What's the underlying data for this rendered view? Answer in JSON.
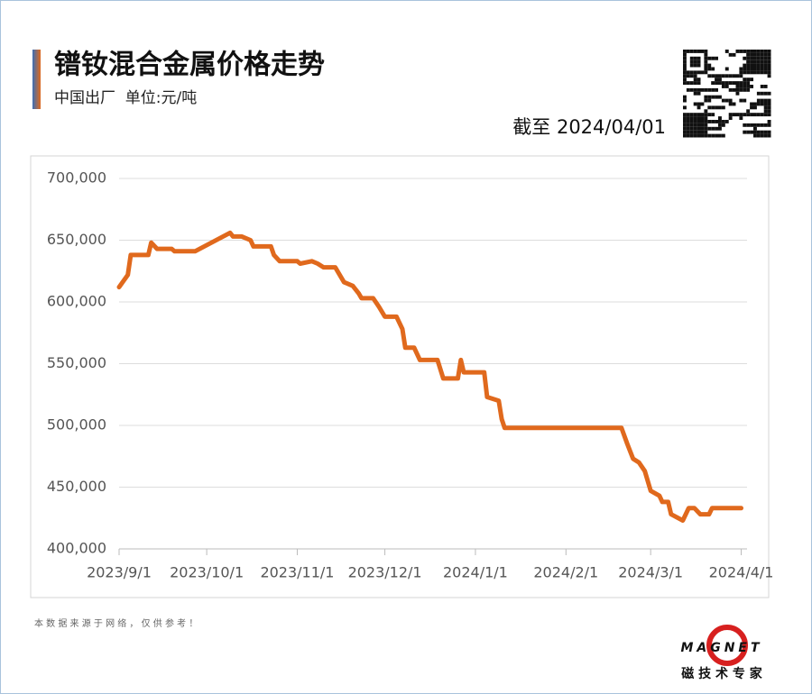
{
  "header": {
    "title": "镨钕混合金属价格走势",
    "subtitle": "中国出厂  单位:元/吨",
    "as_of": "截至 2024/04/01"
  },
  "chart_data": {
    "type": "line",
    "x": [
      "2023/9/1",
      "2023/9/4",
      "2023/9/5",
      "2023/9/11",
      "2023/9/12",
      "2023/9/14",
      "2023/9/19",
      "2023/9/20",
      "2023/9/27",
      "2023/10/9",
      "2023/10/10",
      "2023/10/13",
      "2023/10/16",
      "2023/10/17",
      "2023/10/23",
      "2023/10/24",
      "2023/10/26",
      "2023/11/1",
      "2023/11/2",
      "2023/11/6",
      "2023/11/8",
      "2023/11/10",
      "2023/11/14",
      "2023/11/17",
      "2023/11/20",
      "2023/11/22",
      "2023/11/23",
      "2023/11/27",
      "2023/11/29",
      "2023/12/1",
      "2023/12/5",
      "2023/12/7",
      "2023/12/8",
      "2023/12/11",
      "2023/12/13",
      "2023/12/19",
      "2023/12/21",
      "2023/12/26",
      "2023/12/27",
      "2023/12/28",
      "2024/1/4",
      "2024/1/5",
      "2024/1/9",
      "2024/1/10",
      "2024/1/11",
      "2024/2/20",
      "2024/2/22",
      "2024/2/24",
      "2024/2/26",
      "2024/2/28",
      "2024/3/1",
      "2024/3/4",
      "2024/3/5",
      "2024/3/7",
      "2024/3/8",
      "2024/3/12",
      "2024/3/14",
      "2024/3/16",
      "2024/3/18",
      "2024/3/21",
      "2024/3/22",
      "2024/4/1"
    ],
    "series": [
      {
        "name": "镨钕混合金属",
        "color": "#e0691d",
        "values": [
          612000,
          622000,
          638000,
          638000,
          648000,
          643000,
          643000,
          641000,
          641000,
          656000,
          653000,
          653000,
          650000,
          645000,
          645000,
          638000,
          633000,
          633000,
          631000,
          633000,
          631000,
          628000,
          628000,
          616000,
          613000,
          607000,
          603000,
          603000,
          596000,
          588000,
          588000,
          578000,
          563000,
          563000,
          553000,
          553000,
          538000,
          538000,
          553000,
          543000,
          543000,
          523000,
          520000,
          505000,
          498000,
          498000,
          485000,
          473000,
          470000,
          463000,
          447000,
          443000,
          438000,
          438000,
          428000,
          423000,
          433000,
          433000,
          428000,
          428000,
          433000,
          433000
        ]
      }
    ],
    "xlim": [
      "2023/9/1",
      "2024/4/3"
    ],
    "xticks": [
      "2023/9/1",
      "2023/10/1",
      "2023/11/1",
      "2023/12/1",
      "2024/1/1",
      "2024/2/1",
      "2024/3/1",
      "2024/4/1"
    ],
    "ylim": [
      400000,
      700000
    ],
    "yticks": [
      {
        "value": 400000,
        "label": "400,000"
      },
      {
        "value": 450000,
        "label": "450,000"
      },
      {
        "value": 500000,
        "label": "500,000"
      },
      {
        "value": 550000,
        "label": "550,000"
      },
      {
        "value": 600000,
        "label": "600,000"
      },
      {
        "value": 650000,
        "label": "650,000"
      },
      {
        "value": 700000,
        "label": "700,000"
      }
    ],
    "grid": true
  },
  "footer": {
    "note": "本 数 据 来 源 于 网 络 ， 仅 供 参 考 ！",
    "brand": "MAGNET",
    "slogan": "磁 技 术 专 家"
  }
}
